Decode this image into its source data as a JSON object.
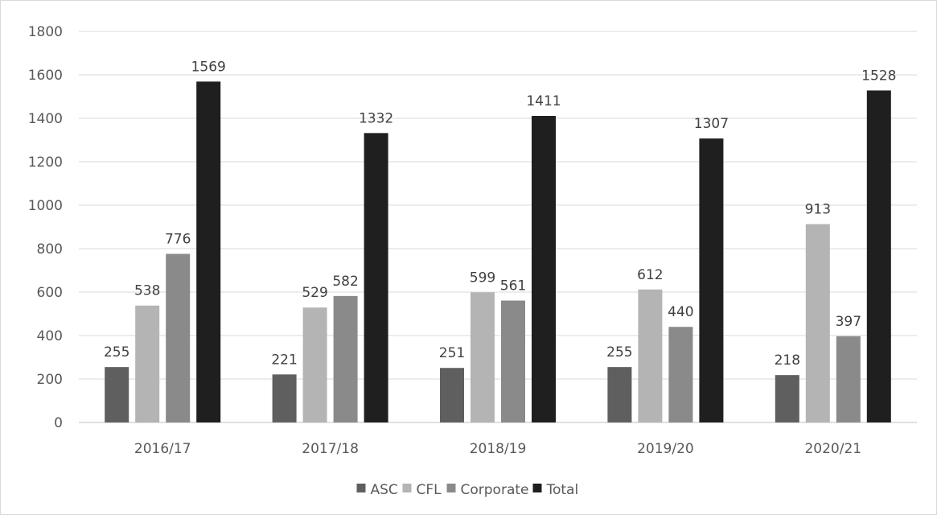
{
  "chart_data": {
    "type": "bar",
    "categories": [
      "2016/17",
      "2017/18",
      "2018/19",
      "2019/20",
      "2020/21"
    ],
    "series": [
      {
        "name": "ASC",
        "color": "#5f5f5f",
        "values": [
          255,
          221,
          251,
          255,
          218
        ]
      },
      {
        "name": "CFL",
        "color": "#b4b4b4",
        "values": [
          538,
          529,
          599,
          612,
          913
        ]
      },
      {
        "name": "Corporate",
        "color": "#8a8a8a",
        "values": [
          776,
          582,
          561,
          440,
          397
        ]
      },
      {
        "name": "Total",
        "color": "#1f1f1f",
        "values": [
          1569,
          1332,
          1411,
          1307,
          1528
        ]
      }
    ],
    "ylim": [
      0,
      1800
    ],
    "yticks": [
      0,
      200,
      400,
      600,
      800,
      1000,
      1200,
      1400,
      1600,
      1800
    ],
    "grid": true,
    "legend": "bottom-center",
    "data_labels": true
  }
}
